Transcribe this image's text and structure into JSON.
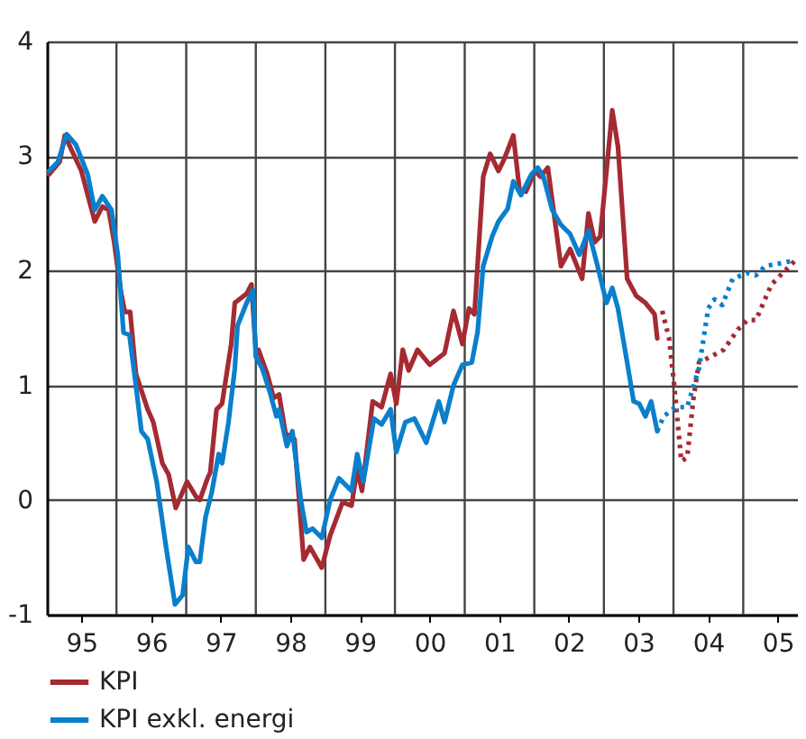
{
  "chart_data": {
    "type": "line",
    "xlim": [
      "1995-01-01",
      "2005-10-10"
    ],
    "ylim": [
      -1,
      4
    ],
    "xticks": [
      {
        "value": "1995-07-01",
        "label": "95"
      },
      {
        "value": "1996-01-01",
        "label": null
      },
      {
        "value": "1996-07-01",
        "label": "96"
      },
      {
        "value": "1997-01-01",
        "label": null
      },
      {
        "value": "1997-07-01",
        "label": "97"
      },
      {
        "value": "1998-01-01",
        "label": null
      },
      {
        "value": "1998-07-01",
        "label": "98"
      },
      {
        "value": "1999-01-01",
        "label": null
      },
      {
        "value": "1999-07-01",
        "label": "99"
      },
      {
        "value": "2000-01-01",
        "label": null
      },
      {
        "value": "2000-07-01",
        "label": "00"
      },
      {
        "value": "2001-01-01",
        "label": null
      },
      {
        "value": "2001-07-01",
        "label": "01"
      },
      {
        "value": "2002-01-01",
        "label": null
      },
      {
        "value": "2002-07-01",
        "label": "02"
      },
      {
        "value": "2003-01-01",
        "label": null
      },
      {
        "value": "2003-07-01",
        "label": "03"
      },
      {
        "value": "2004-01-01",
        "label": null
      },
      {
        "value": "2004-07-01",
        "label": "04"
      },
      {
        "value": "2005-01-01",
        "label": null
      },
      {
        "value": "2005-07-01",
        "label": "05"
      }
    ],
    "yticks": [
      -1,
      0,
      1,
      2,
      3,
      4
    ],
    "grid": true,
    "legend": "bottom left",
    "line_style": "solid",
    "series": [
      {
        "name": "KPI",
        "color": "#a52a32",
        "x": [
          "1995-01-12",
          "1995-03-09",
          "1995-04-05",
          "1995-07-01",
          "1995-09-09",
          "1995-10-19",
          "1995-11-21",
          "1995-12-20",
          "1996-01-23",
          "1996-02-14",
          "1996-03-13",
          "1996-04-12",
          "1996-06-13",
          "1996-07-12",
          "1996-08-29",
          "1996-10-01",
          "1996-11-07",
          "1997-01-05",
          "1997-02-21",
          "1997-03-13",
          "1997-04-23",
          "1997-05-07",
          "1997-06-09",
          "1997-07-08",
          "1997-08-25",
          "1997-09-13",
          "1997-11-14",
          "1997-12-09",
          "1998-01-01",
          "1998-01-15",
          "1998-03-02",
          "1998-04-05",
          "1998-05-03",
          "1998-06-06",
          "1998-07-23",
          "1998-09-09",
          "1998-10-12",
          "1998-12-13",
          "1999-01-26",
          "1999-04-01",
          "1999-05-18",
          "1999-06-17",
          "1999-07-12",
          "1999-09-06",
          "1999-10-23",
          "1999-12-09",
          "2000-01-08",
          "2000-02-11",
          "2000-03-13",
          "2000-04-28",
          "2000-07-01",
          "2000-09-17",
          "2000-11-03",
          "2000-12-20",
          "2001-01-23",
          "2001-02-21",
          "2001-04-08",
          "2001-05-14",
          "2001-06-27",
          "2001-07-26",
          "2001-09-13",
          "2001-10-15",
          "2001-11-18",
          "2002-01-05",
          "2002-02-03",
          "2002-03-13",
          "2002-05-21",
          "2002-07-08",
          "2002-09-09",
          "2002-10-12",
          "2002-11-14",
          "2002-12-13",
          "2003-02-14",
          "2003-03-16",
          "2003-05-03",
          "2003-06-20",
          "2003-08-07",
          "2003-09-24",
          "2003-10-08"
        ],
        "values": [
          2.84,
          2.95,
          3.18,
          2.87,
          2.43,
          2.56,
          2.53,
          2.25,
          1.83,
          1.64,
          1.64,
          1.1,
          0.79,
          0.68,
          0.32,
          0.22,
          -0.07,
          0.16,
          0.03,
          0.0,
          0.19,
          0.24,
          0.79,
          0.84,
          1.36,
          1.72,
          1.8,
          1.88,
          1.31,
          1.31,
          1.1,
          0.89,
          0.92,
          0.58,
          0.53,
          -0.52,
          -0.41,
          -0.59,
          -0.31,
          -0.02,
          -0.05,
          0.27,
          0.08,
          0.86,
          0.81,
          1.1,
          0.84,
          1.31,
          1.13,
          1.31,
          1.18,
          1.28,
          1.65,
          1.36,
          1.67,
          1.62,
          2.82,
          3.02,
          2.87,
          2.97,
          3.18,
          2.71,
          2.69,
          2.87,
          2.82,
          2.9,
          2.04,
          2.19,
          1.93,
          2.5,
          2.25,
          2.3,
          3.4,
          3.08,
          1.93,
          1.78,
          1.72,
          1.62,
          1.41
        ]
      },
      {
        "name": "KPI exkl. energi",
        "color": "#0a7fcc",
        "x": [
          "1995-01-12",
          "1995-02-28",
          "1995-04-15",
          "1995-06-02",
          "1995-08-03",
          "1995-09-09",
          "1995-10-19",
          "1995-12-06",
          "1996-01-08",
          "1996-02-07",
          "1996-03-09",
          "1996-04-12",
          "1996-05-11",
          "1996-06-13",
          "1996-07-30",
          "1996-09-17",
          "1996-11-03",
          "1996-12-13",
          "1997-01-12",
          "1997-02-21",
          "1997-03-13",
          "1997-04-12",
          "1997-05-14",
          "1997-06-20",
          "1997-07-08",
          "1997-08-11",
          "1997-09-13",
          "1997-09-27",
          "1997-11-14",
          "1997-12-17",
          "1998-01-01",
          "1998-02-03",
          "1998-03-16",
          "1998-04-19",
          "1998-05-03",
          "1998-06-13",
          "1998-07-12",
          "1998-08-25",
          "1998-09-24",
          "1998-10-26",
          "1998-12-13",
          "1999-01-26",
          "1999-03-13",
          "1999-05-18",
          "1999-06-17",
          "1999-07-19",
          "1999-09-13",
          "1999-10-23",
          "1999-12-09",
          "2000-01-08",
          "2000-02-25",
          "2000-04-12",
          "2000-06-13",
          "2000-08-18",
          "2000-09-17",
          "2000-11-03",
          "2000-12-20",
          "2001-02-07",
          "2001-03-09",
          "2001-04-08",
          "2001-05-25",
          "2001-06-27",
          "2001-08-14",
          "2001-09-13",
          "2001-10-23",
          "2001-12-17",
          "2002-01-19",
          "2002-02-18",
          "2002-04-05",
          "2002-05-21",
          "2002-07-08",
          "2002-08-25",
          "2002-10-12",
          "2002-11-29",
          "2003-01-15",
          "2003-02-14",
          "2003-03-16",
          "2003-05-03",
          "2003-06-06",
          "2003-07-05",
          "2003-08-07",
          "2003-09-06",
          "2003-10-08"
        ],
        "values": [
          2.87,
          2.95,
          3.19,
          3.1,
          2.84,
          2.53,
          2.65,
          2.53,
          2.14,
          1.46,
          1.44,
          1.0,
          0.6,
          0.53,
          0.16,
          -0.41,
          -0.91,
          -0.83,
          -0.41,
          -0.54,
          -0.54,
          -0.15,
          0.06,
          0.4,
          0.32,
          0.68,
          1.15,
          1.52,
          1.72,
          1.83,
          1.25,
          1.15,
          0.94,
          0.73,
          0.79,
          0.47,
          0.6,
          0.0,
          -0.28,
          -0.25,
          -0.33,
          0.0,
          0.19,
          0.08,
          0.4,
          0.16,
          0.71,
          0.66,
          0.79,
          0.42,
          0.68,
          0.71,
          0.5,
          0.86,
          0.68,
          1.0,
          1.18,
          1.2,
          1.46,
          2.04,
          2.3,
          2.43,
          2.54,
          2.78,
          2.66,
          2.84,
          2.9,
          2.82,
          2.53,
          2.4,
          2.32,
          2.14,
          2.35,
          2.04,
          1.72,
          1.85,
          1.67,
          1.2,
          0.86,
          0.84,
          0.73,
          0.86,
          0.6
        ]
      },
      {
        "color": "#a52a32",
        "line_style": "dotted",
        "x": [
          "2003-11-03",
          "2003-12-09",
          "2004-01-05",
          "2004-02-11",
          "2004-03-13",
          "2004-04-15",
          "2004-05-14",
          "2004-07-15",
          "2004-09-20",
          "2004-12-06",
          "2005-01-23",
          "2005-03-09",
          "2005-05-29",
          "2005-10-01"
        ],
        "values": [
          1.65,
          1.41,
          1.0,
          0.34,
          0.37,
          0.89,
          1.2,
          1.25,
          1.31,
          1.49,
          1.57,
          1.57,
          1.88,
          2.09
        ]
      },
      {
        "color": "#0a7fcc",
        "line_style": "dotted",
        "x": [
          "2003-10-08",
          "2003-11-11",
          "2004-01-12",
          "2004-03-13",
          "2004-05-14",
          "2004-07-01",
          "2004-08-03",
          "2004-09-13",
          "2004-11-07",
          "2005-01-23",
          "2005-03-09",
          "2005-04-26",
          "2005-07-30",
          "2005-10-01"
        ],
        "values": [
          0.6,
          0.73,
          0.81,
          0.81,
          1.15,
          1.67,
          1.75,
          1.7,
          1.93,
          1.98,
          1.96,
          2.04,
          2.07,
          2.09
        ]
      }
    ]
  }
}
